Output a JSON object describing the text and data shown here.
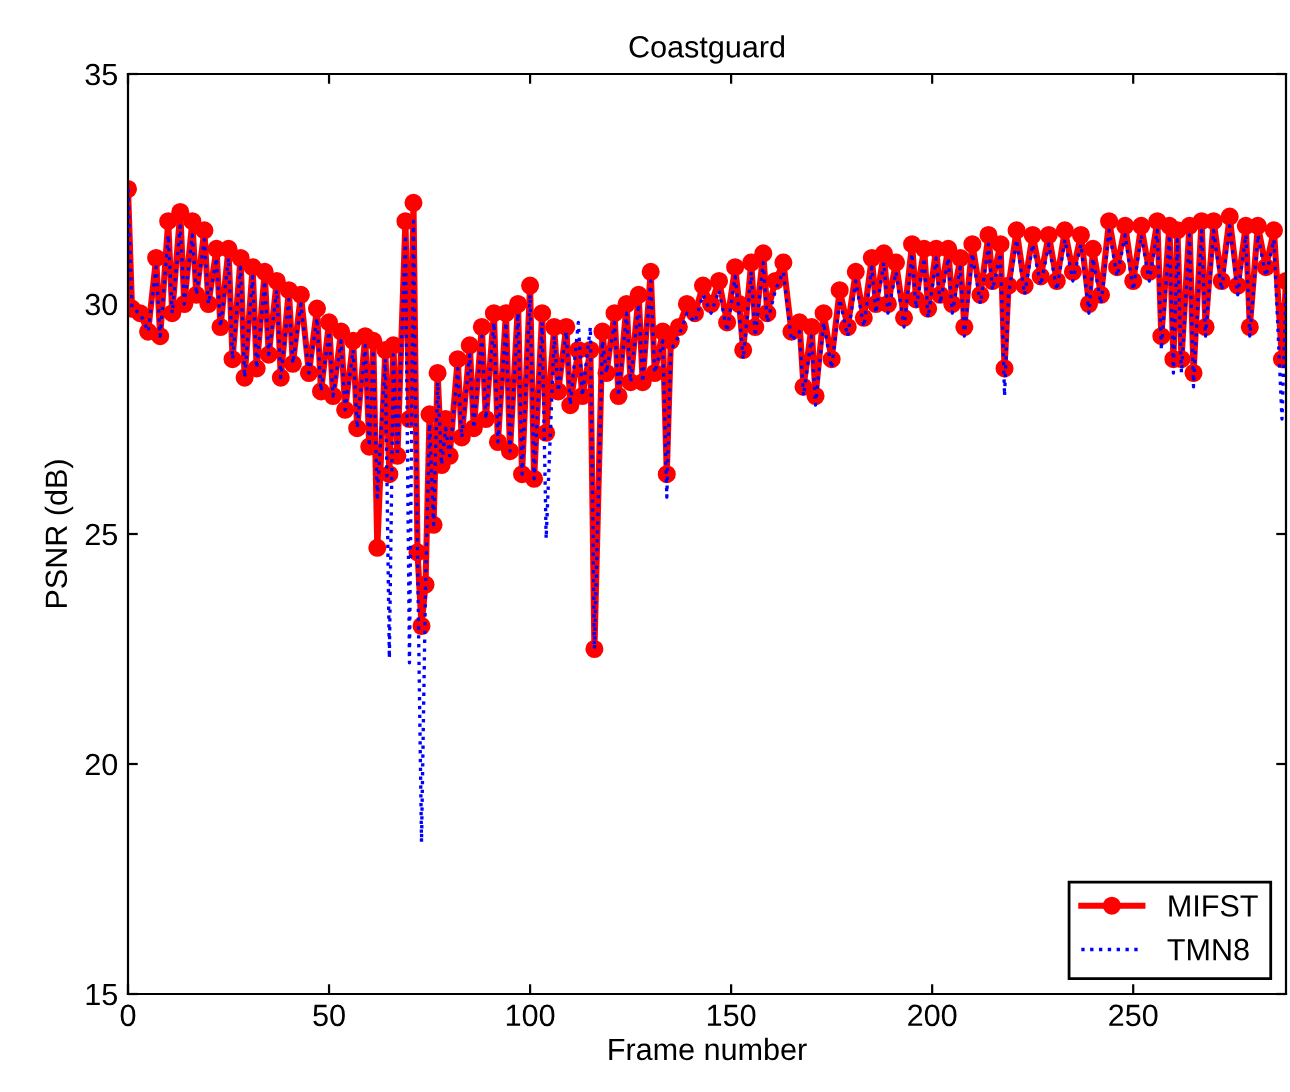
{
  "chart_data": {
    "type": "line",
    "title": "Coastguard",
    "xlabel": "Frame number",
    "ylabel": "PSNR (dB)",
    "xlim": [
      0,
      288
    ],
    "xticks": [
      0,
      50,
      100,
      150,
      200,
      250
    ],
    "ylim": [
      15,
      35
    ],
    "yticks": [
      15,
      20,
      25,
      30,
      35
    ],
    "grid": false,
    "legend": "bottom right",
    "x": [
      0,
      1,
      3,
      5,
      7,
      8,
      10,
      11,
      13,
      14,
      16,
      17,
      19,
      20,
      22,
      23,
      25,
      26,
      28,
      29,
      31,
      32,
      34,
      35,
      37,
      38,
      40,
      41,
      43,
      45,
      47,
      48,
      50,
      51,
      53,
      54,
      56,
      57,
      59,
      60,
      61,
      62,
      64,
      65,
      66,
      67,
      69,
      70,
      71,
      72,
      73,
      74,
      75,
      76,
      77,
      78,
      79,
      80,
      82,
      83,
      85,
      86,
      88,
      89,
      91,
      92,
      94,
      95,
      97,
      98,
      100,
      101,
      103,
      104,
      106,
      107,
      109,
      110,
      112,
      113,
      115,
      116,
      118,
      119,
      121,
      122,
      124,
      125,
      127,
      128,
      130,
      131,
      133,
      134,
      135,
      137,
      139,
      141,
      143,
      145,
      147,
      149,
      151,
      152,
      153,
      155,
      156,
      158,
      159,
      161,
      163,
      165,
      167,
      168,
      170,
      171,
      173,
      175,
      177,
      179,
      181,
      183,
      185,
      186,
      188,
      189,
      191,
      193,
      195,
      196,
      198,
      199,
      201,
      202,
      204,
      205,
      207,
      208,
      210,
      212,
      214,
      215,
      217,
      218,
      219,
      221,
      223,
      225,
      227,
      229,
      231,
      233,
      235,
      237,
      239,
      240,
      242,
      244,
      246,
      248,
      250,
      252,
      254,
      256,
      257,
      259,
      260,
      261,
      262,
      264,
      265,
      267,
      268,
      270,
      272,
      274,
      276,
      278,
      279,
      281,
      283,
      285,
      287,
      288
    ],
    "series": [
      {
        "name": "MIFST",
        "color": "#ff0000",
        "marker": "circle",
        "line_style": "solid",
        "values": [
          32.5,
          29.9,
          29.8,
          29.4,
          31.0,
          29.3,
          31.8,
          29.8,
          32.0,
          30.0,
          31.8,
          30.2,
          31.6,
          30.0,
          31.2,
          29.5,
          31.2,
          28.8,
          31.0,
          28.4,
          30.8,
          28.6,
          30.7,
          28.9,
          30.5,
          28.4,
          30.3,
          28.7,
          30.2,
          28.5,
          29.9,
          28.1,
          29.6,
          28.0,
          29.4,
          27.7,
          29.2,
          27.3,
          29.3,
          26.9,
          29.2,
          24.7,
          29.0,
          26.3,
          29.1,
          26.7,
          31.8,
          27.5,
          32.2,
          24.6,
          23.0,
          23.9,
          27.6,
          25.2,
          28.5,
          26.5,
          27.5,
          26.7,
          28.8,
          27.1,
          29.1,
          27.3,
          29.5,
          27.5,
          29.8,
          27.0,
          29.8,
          26.8,
          30.0,
          26.3,
          30.4,
          26.2,
          29.8,
          27.2,
          29.5,
          28.1,
          29.5,
          27.8,
          29.0,
          28.0,
          29.0,
          22.5,
          29.4,
          28.5,
          29.8,
          28.0,
          30.0,
          28.3,
          30.2,
          28.3,
          30.7,
          28.5,
          29.4,
          26.3,
          29.2,
          29.5,
          30.0,
          29.8,
          30.4,
          30.0,
          30.5,
          29.6,
          30.8,
          30.0,
          29.0,
          30.9,
          29.5,
          31.1,
          29.8,
          30.5,
          30.9,
          29.4,
          29.6,
          28.2,
          29.5,
          28.0,
          29.8,
          28.8,
          30.3,
          29.5,
          30.7,
          29.7,
          31.0,
          30.0,
          31.1,
          30.0,
          30.9,
          29.7,
          31.3,
          30.1,
          31.2,
          29.9,
          31.2,
          30.2,
          31.2,
          30.0,
          31.0,
          29.5,
          31.3,
          30.2,
          31.5,
          30.5,
          31.3,
          28.6,
          30.4,
          31.6,
          30.4,
          31.5,
          30.6,
          31.5,
          30.5,
          31.6,
          30.7,
          31.5,
          30.0,
          31.2,
          30.2,
          31.8,
          30.8,
          31.7,
          30.5,
          31.7,
          30.7,
          31.8,
          29.3,
          31.7,
          28.8,
          31.6,
          28.8,
          31.7,
          28.5,
          31.8,
          29.5,
          31.8,
          30.5,
          31.9,
          30.4,
          31.7,
          29.5,
          31.7,
          30.8,
          31.6,
          28.8,
          30.5
        ]
      },
      {
        "name": "TMN8",
        "color": "#0000ff",
        "marker": "none",
        "line_style": "dotted",
        "values": [
          32.5,
          29.9,
          29.8,
          29.4,
          30.8,
          29.3,
          31.5,
          29.8,
          31.7,
          30.0,
          31.5,
          30.2,
          31.4,
          30.0,
          31.0,
          29.5,
          31.0,
          28.8,
          30.8,
          28.4,
          30.6,
          28.6,
          30.5,
          28.9,
          30.3,
          28.4,
          30.1,
          28.7,
          30.0,
          28.5,
          29.7,
          28.1,
          29.4,
          28.0,
          29.2,
          27.7,
          29.0,
          27.3,
          29.1,
          26.9,
          29.0,
          25.8,
          28.8,
          22.3,
          28.9,
          26.7,
          31.5,
          22.2,
          31.8,
          24.6,
          18.3,
          23.9,
          27.4,
          25.2,
          28.3,
          26.5,
          27.3,
          26.7,
          28.6,
          27.1,
          28.9,
          27.3,
          29.3,
          27.5,
          29.6,
          27.0,
          29.6,
          26.8,
          29.8,
          26.3,
          30.2,
          26.2,
          29.6,
          24.9,
          29.3,
          28.1,
          29.4,
          27.8,
          29.6,
          28.0,
          29.5,
          22.5,
          29.2,
          28.5,
          29.6,
          28.0,
          29.8,
          28.3,
          30.0,
          28.3,
          30.5,
          28.5,
          29.2,
          25.8,
          29.0,
          29.3,
          29.8,
          29.6,
          30.2,
          29.8,
          30.3,
          29.4,
          30.6,
          29.8,
          28.8,
          30.7,
          29.3,
          30.9,
          29.6,
          30.3,
          30.7,
          29.2,
          29.4,
          28.0,
          29.3,
          27.8,
          29.6,
          28.6,
          30.1,
          29.3,
          30.5,
          29.5,
          30.8,
          29.8,
          30.9,
          29.8,
          30.7,
          29.5,
          31.1,
          29.9,
          31.0,
          29.7,
          31.0,
          30.0,
          31.0,
          29.8,
          30.8,
          29.3,
          31.1,
          30.0,
          31.3,
          30.3,
          31.1,
          28.0,
          30.2,
          31.4,
          30.2,
          31.3,
          30.4,
          31.3,
          30.3,
          31.4,
          30.5,
          31.3,
          29.8,
          31.0,
          30.0,
          31.6,
          30.6,
          31.5,
          30.3,
          31.5,
          30.5,
          31.6,
          29.0,
          31.5,
          28.5,
          31.4,
          28.5,
          31.5,
          28.2,
          31.6,
          29.3,
          31.6,
          30.3,
          31.7,
          30.2,
          31.5,
          29.3,
          31.5,
          30.6,
          31.4,
          27.5,
          30.3
        ]
      }
    ]
  }
}
